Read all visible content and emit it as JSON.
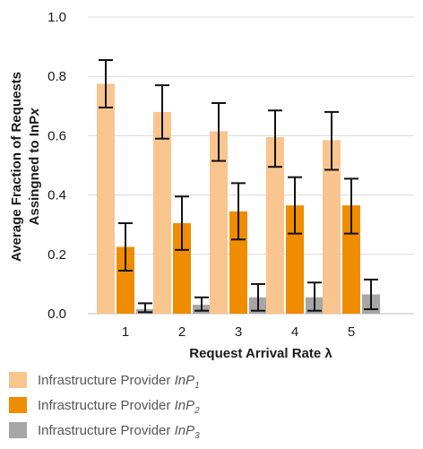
{
  "chart_data": {
    "type": "bar",
    "categories": [
      "1",
      "2",
      "3",
      "4",
      "5"
    ],
    "xlabel": "Request Arrival Rate λ",
    "ylabel_line1": "Average Fraction of Requests",
    "ylabel_line2_prefix": "Assingned to InP",
    "ylabel_line2_var": "x",
    "ylim": [
      0,
      1.0
    ],
    "yticks": [
      0.0,
      0.2,
      0.4,
      0.6,
      0.8,
      1.0
    ],
    "ytick_labels": [
      "0.0",
      "0.2",
      "0.4",
      "0.6",
      "0.8",
      "1.0"
    ],
    "grid": true,
    "legend_position": "bottom",
    "series": [
      {
        "legend_text": "Infrastructure Provider ",
        "legend_var": "InP",
        "legend_sub": "1",
        "color": "#f9c58f",
        "values": [
          0.775,
          0.68,
          0.615,
          0.595,
          0.585
        ],
        "err_low": [
          0.695,
          0.59,
          0.515,
          0.495,
          0.485
        ],
        "err_high": [
          0.855,
          0.77,
          0.71,
          0.685,
          0.68
        ]
      },
      {
        "legend_text": "Infrastructure Provider ",
        "legend_var": "InP",
        "legend_sub": "2",
        "color": "#f08c00",
        "values": [
          0.225,
          0.305,
          0.345,
          0.365,
          0.365
        ],
        "err_low": [
          0.145,
          0.215,
          0.25,
          0.27,
          0.27
        ],
        "err_high": [
          0.305,
          0.395,
          0.44,
          0.46,
          0.455
        ]
      },
      {
        "legend_text": "Infrastructure Provider ",
        "legend_var": "InP",
        "legend_sub": "3",
        "color": "#a6a6a6",
        "values": [
          0.015,
          0.03,
          0.055,
          0.055,
          0.065
        ],
        "err_low": [
          0.005,
          0.01,
          0.01,
          0.01,
          0.015
        ],
        "err_high": [
          0.035,
          0.055,
          0.1,
          0.105,
          0.115
        ]
      }
    ]
  }
}
